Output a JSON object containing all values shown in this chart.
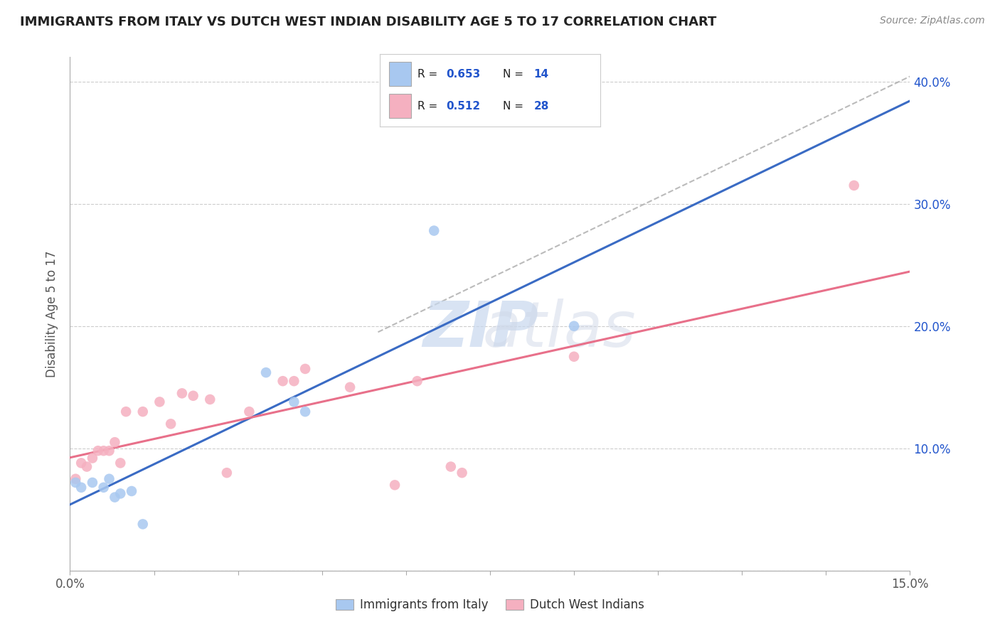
{
  "title": "IMMIGRANTS FROM ITALY VS DUTCH WEST INDIAN DISABILITY AGE 5 TO 17 CORRELATION CHART",
  "source": "Source: ZipAtlas.com",
  "ylabel": "Disability Age 5 to 17",
  "xlim": [
    0.0,
    0.15
  ],
  "ylim": [
    0.0,
    0.42
  ],
  "italy_color": "#a8c8f0",
  "dwi_color": "#f5b0c0",
  "italy_R": 0.653,
  "italy_N": 14,
  "dwi_R": 0.512,
  "dwi_N": 28,
  "italy_line_color": "#3a6bc4",
  "dwi_line_color": "#e8708a",
  "dash_line_color": "#aaaaaa",
  "legend_label_italy": "Immigrants from Italy",
  "legend_label_dwi": "Dutch West Indians",
  "italy_scatter_x": [
    0.001,
    0.002,
    0.004,
    0.006,
    0.007,
    0.008,
    0.009,
    0.011,
    0.013,
    0.035,
    0.04,
    0.042,
    0.065,
    0.09
  ],
  "italy_scatter_y": [
    0.072,
    0.068,
    0.072,
    0.068,
    0.075,
    0.06,
    0.063,
    0.065,
    0.038,
    0.162,
    0.138,
    0.13,
    0.278,
    0.2
  ],
  "dwi_scatter_x": [
    0.001,
    0.002,
    0.003,
    0.004,
    0.005,
    0.006,
    0.007,
    0.008,
    0.009,
    0.01,
    0.013,
    0.016,
    0.018,
    0.02,
    0.022,
    0.025,
    0.028,
    0.032,
    0.038,
    0.04,
    0.042,
    0.05,
    0.058,
    0.062,
    0.068,
    0.07,
    0.09,
    0.14
  ],
  "dwi_scatter_y": [
    0.075,
    0.088,
    0.085,
    0.092,
    0.098,
    0.098,
    0.098,
    0.105,
    0.088,
    0.13,
    0.13,
    0.138,
    0.12,
    0.145,
    0.143,
    0.14,
    0.08,
    0.13,
    0.155,
    0.155,
    0.165,
    0.15,
    0.07,
    0.155,
    0.085,
    0.08,
    0.175,
    0.315
  ],
  "bg_color": "#ffffff",
  "grid_color": "#cccccc",
  "title_color": "#222222",
  "axis_label_color": "#555555",
  "corr_value_color": "#2255cc",
  "corr_label_color": "#222222"
}
